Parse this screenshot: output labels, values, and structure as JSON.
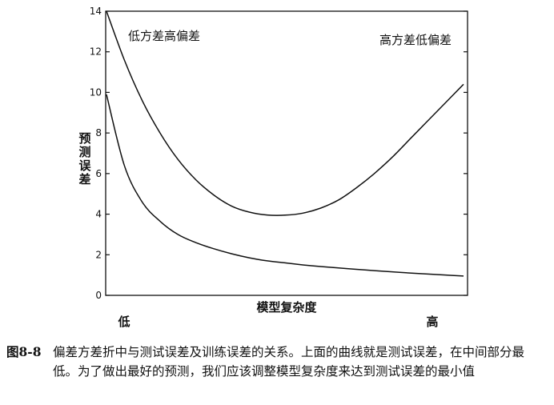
{
  "chart_data": {
    "type": "line",
    "x_tick_labels": [
      "低",
      "高"
    ],
    "xlabel": "模型复杂度",
    "ylabel": "预测误差",
    "ylim": [
      0,
      14
    ],
    "y_ticks": [
      0,
      2,
      4,
      6,
      8,
      10,
      12,
      14
    ],
    "grid": false,
    "annotations": [
      "低方差高偏差",
      "高方差低偏差"
    ],
    "series": [
      {
        "x": [
          0,
          0.05,
          0.1,
          0.15,
          0.2,
          0.25,
          0.3,
          0.35,
          0.4,
          0.45,
          0.5,
          0.55,
          0.6,
          0.65,
          0.7,
          0.75,
          0.8,
          0.85,
          0.9,
          0.95,
          1.0
        ],
        "values": [
          14.0,
          11.6,
          9.6,
          8.0,
          6.7,
          5.7,
          4.95,
          4.4,
          4.1,
          3.96,
          3.95,
          4.05,
          4.3,
          4.7,
          5.3,
          6.0,
          6.8,
          7.7,
          8.6,
          9.5,
          10.4
        ]
      },
      {
        "x": [
          0,
          0.05,
          0.1,
          0.15,
          0.2,
          0.25,
          0.3,
          0.35,
          0.4,
          0.45,
          0.5,
          0.55,
          0.6,
          0.65,
          0.7,
          0.75,
          0.8,
          0.85,
          0.9,
          0.95,
          1.0
        ],
        "values": [
          9.9,
          6.4,
          4.6,
          3.65,
          3.0,
          2.6,
          2.3,
          2.05,
          1.85,
          1.7,
          1.6,
          1.5,
          1.42,
          1.35,
          1.28,
          1.22,
          1.16,
          1.1,
          1.05,
          1.0,
          0.95
        ]
      }
    ]
  },
  "caption": {
    "number": "图8-8",
    "text": "偏差方差折中与测试误差及训练误差的关系。上面的曲线就是测试误差，在中间部分最低。为了做出最好的预测，我们应该调整模型复杂度来达到测试误差的最小值"
  }
}
